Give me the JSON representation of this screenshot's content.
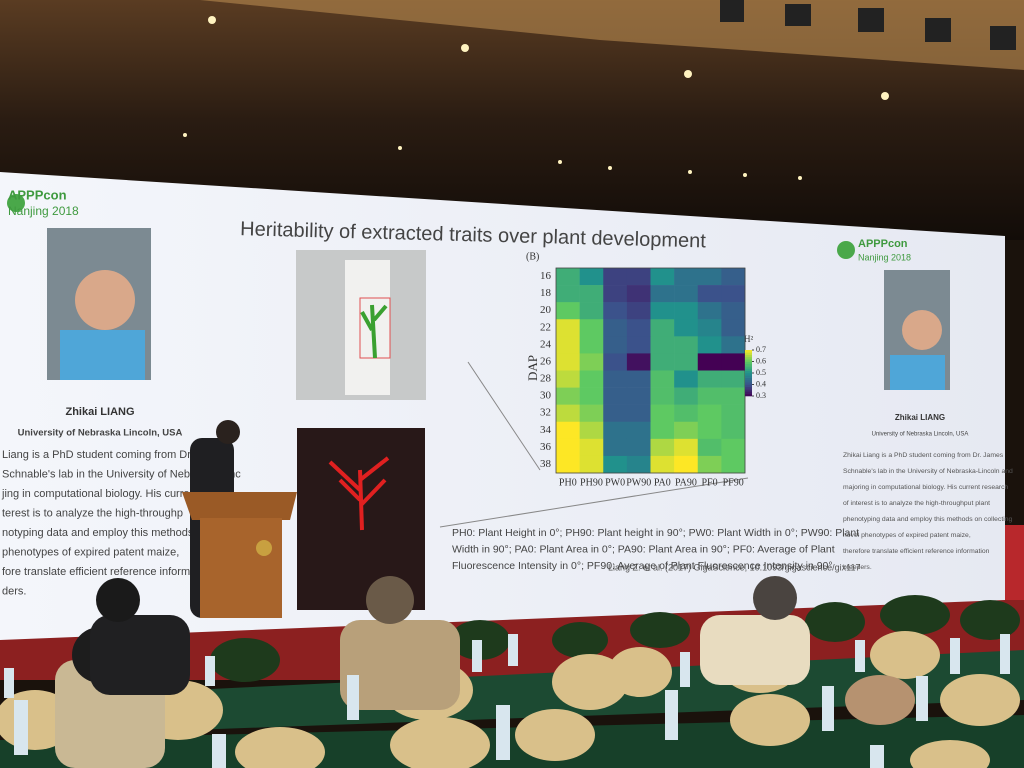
{
  "slide": {
    "logo_left": {
      "name": "APPPcon",
      "place": "Nanjing 2018"
    },
    "logo_right": {
      "name": "APPPcon",
      "place": "Nanjing 2018"
    },
    "title": "Heritability of extracted traits over plant development",
    "panel_label": "(B)",
    "heatmap": {
      "y_label": "DAP",
      "rows": [
        16,
        18,
        20,
        22,
        24,
        26,
        28,
        30,
        32,
        34,
        36,
        38
      ],
      "columns": [
        "PH0",
        "PH90",
        "PW0",
        "PW90",
        "PA0",
        "PA90",
        "PF0",
        "PF90"
      ],
      "values": [
        [
          0.55,
          0.5,
          0.38,
          0.38,
          0.5,
          0.45,
          0.45,
          0.42
        ],
        [
          0.55,
          0.55,
          0.38,
          0.36,
          0.45,
          0.45,
          0.4,
          0.4
        ],
        [
          0.6,
          0.55,
          0.4,
          0.38,
          0.5,
          0.5,
          0.45,
          0.42
        ],
        [
          0.68,
          0.6,
          0.42,
          0.4,
          0.55,
          0.5,
          0.48,
          0.42
        ],
        [
          0.68,
          0.6,
          0.42,
          0.4,
          0.55,
          0.55,
          0.5,
          0.45
        ],
        [
          0.68,
          0.62,
          0.4,
          0.32,
          0.55,
          0.55,
          0.3,
          0.3
        ],
        [
          0.66,
          0.6,
          0.42,
          0.42,
          0.58,
          0.5,
          0.55,
          0.55
        ],
        [
          0.62,
          0.6,
          0.42,
          0.42,
          0.58,
          0.55,
          0.58,
          0.58
        ],
        [
          0.66,
          0.62,
          0.42,
          0.42,
          0.6,
          0.58,
          0.6,
          0.58
        ],
        [
          0.7,
          0.65,
          0.45,
          0.45,
          0.6,
          0.62,
          0.6,
          0.58
        ],
        [
          0.7,
          0.68,
          0.45,
          0.45,
          0.65,
          0.68,
          0.58,
          0.6
        ],
        [
          0.72,
          0.68,
          0.5,
          0.48,
          0.68,
          0.7,
          0.62,
          0.6
        ]
      ],
      "colorbar": {
        "label": "H²",
        "ticks": [
          0.7,
          0.6,
          0.5,
          0.4,
          0.3
        ]
      }
    },
    "caption": [
      "PH0: Plant Height in 0°; PH90: Plant height in 90°; PW0: Plant Width in 0°; PW90: Plant",
      "Width in 90°; PA0: Plant Area in 0°; PA90: Plant Area in 90°; PF0: Average of Plant",
      "Fluorescence Intensity in 0°; PF90: Average of Plant Fluorescence Intensity in 90°"
    ],
    "citation": "Liang Z. et al. (2017) GigaScience, 10.1093/gigascience/gix117",
    "speaker_left": {
      "name": "Zhikai LIANG",
      "affiliation": "University of Nebraska Lincoln, USA",
      "bio": [
        "Liang is a PhD student coming from Dr. Ja",
        "Schnable's lab in the University of Nebraska-Linc",
        "jing in computational biology. His current",
        "terest is to analyze the high-throughp",
        "notyping data and employ this methods on co",
        "phenotypes of expired patent maize,",
        "fore translate efficient reference informatio",
        "ders."
      ]
    },
    "speaker_right": {
      "name": "Zhikai LIANG",
      "affiliation": "University of Nebraska Lincoln, USA",
      "bio": [
        "Zhikai Liang is a PhD student coming from Dr. James",
        "Schnable's lab in the University of Nebraska-Lincoln and",
        "majoring in computational biology. His current research",
        "of interest is to analyze the high-throughput plant",
        "phenotyping data and employ this methods on collecting",
        "novel phenotypes of expired patent maize,",
        "therefore translate efficient reference information",
        "breeders."
      ]
    }
  }
}
